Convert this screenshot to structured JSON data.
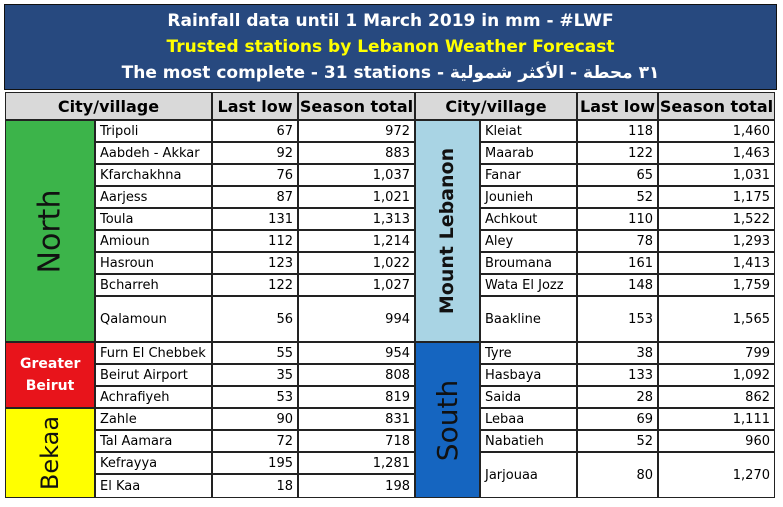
{
  "header": {
    "title": "Rainfall data until 1 March 2019 in mm - #LWF",
    "subtitle": "Trusted stations by Lebanon Weather Forecast",
    "line3": "The most complete - 31 stations - ٣١ محطة - الأكثر شمولية"
  },
  "table": {
    "columns": [
      "City/village",
      "Last low",
      "Season total"
    ],
    "left": [
      {
        "region": "North",
        "rows": [
          [
            "Tripoli",
            "67",
            "972"
          ],
          [
            "Aabdeh - Akkar",
            "92",
            "883"
          ],
          [
            "Kfarchakhna",
            "76",
            "1,037"
          ],
          [
            "Aarjess",
            "87",
            "1,021"
          ],
          [
            "Toula",
            "131",
            "1,313"
          ],
          [
            "Amioun",
            "112",
            "1,214"
          ],
          [
            "Hasroun",
            "123",
            "1,022"
          ],
          [
            "Bcharreh",
            "122",
            "1,027"
          ],
          [
            "Qalamoun",
            "56",
            "994"
          ]
        ]
      },
      {
        "region": "Greater Beirut",
        "rows": [
          [
            "Furn El Chebbek",
            "55",
            "954"
          ],
          [
            "Beirut Airport",
            "35",
            "808"
          ],
          [
            "Achrafiyeh",
            "53",
            "819"
          ]
        ]
      },
      {
        "region": "Bekaa",
        "rows": [
          [
            "Zahle",
            "90",
            "831"
          ],
          [
            "Tal Aamara",
            "72",
            "718"
          ],
          [
            "Kefrayya",
            "195",
            "1,281"
          ],
          [
            "El Kaa",
            "18",
            "198"
          ]
        ]
      }
    ],
    "right": [
      {
        "region": "Mount Lebanon",
        "rows": [
          [
            "Kleiat",
            "118",
            "1,460"
          ],
          [
            "Maarab",
            "122",
            "1,463"
          ],
          [
            "Fanar",
            "65",
            "1,031"
          ],
          [
            "Jounieh",
            "52",
            "1,175"
          ],
          [
            "Achkout",
            "110",
            "1,522"
          ],
          [
            "Aley",
            "78",
            "1,293"
          ],
          [
            "Broumana",
            "161",
            "1,413"
          ],
          [
            "Wata El Jozz",
            "148",
            "1,759"
          ],
          [
            "Baakline",
            "153",
            "1,565"
          ]
        ]
      },
      {
        "region": "South",
        "rows": [
          [
            "Tyre",
            "38",
            "799"
          ],
          [
            "Hasbaya",
            "133",
            "1,092"
          ],
          [
            "Saida",
            "28",
            "862"
          ],
          [
            "Lebaa",
            "69",
            "1,111"
          ],
          [
            "Nabatieh",
            "52",
            "960"
          ],
          [
            "Jarjouaa",
            "80",
            "1,270"
          ]
        ]
      }
    ]
  }
}
